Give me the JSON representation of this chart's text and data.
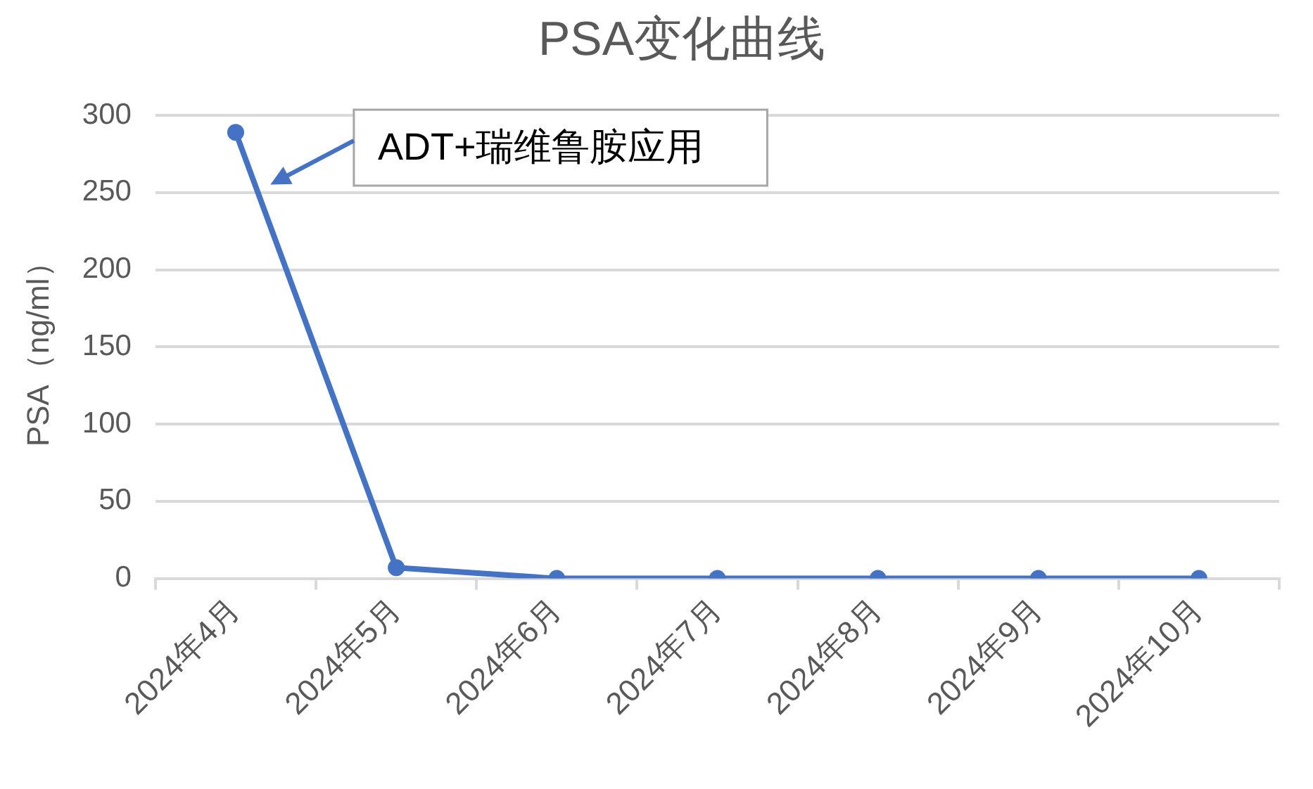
{
  "chart_data": {
    "type": "line",
    "title": "PSA变化曲线",
    "ylabel": "PSA（ng/ml）",
    "categories": [
      "2024年4月",
      "2024年5月",
      "2024年6月",
      "2024年7月",
      "2024年8月",
      "2024年9月",
      "2024年10月"
    ],
    "series": [
      {
        "color": "#4472c4",
        "values": [
          289,
          7,
          0,
          0,
          0,
          0,
          0
        ]
      }
    ],
    "ylim": [
      0,
      300
    ],
    "yticks": [
      0,
      50,
      100,
      150,
      200,
      250,
      300
    ],
    "grid": "y",
    "legend": false,
    "marker": "circle",
    "line_style": "solid",
    "annotations": [
      "ADT+瑞维鲁胺应用"
    ]
  }
}
